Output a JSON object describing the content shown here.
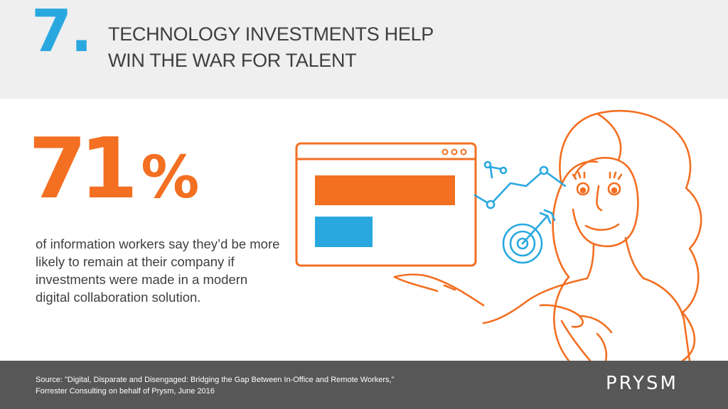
{
  "header": {
    "number": "7.",
    "title_line1": "TECHNOLOGY INVESTMENTS HELP",
    "title_line2": "WIN THE WAR FOR TALENT"
  },
  "stat": {
    "value": "71",
    "symbol": "%",
    "description": "of information workers say they’d be more likely to remain at their company if investments were made in a modern digital collaboration solution."
  },
  "footer": {
    "source_line1": "Source: \"Digital, Disparate and Disengaged: Bridging the Gap Between In-Office and Remote Workers,”",
    "source_line2": "Forrester Consulting on behalf of Prysm, June 2016",
    "logo": "PRYSM"
  },
  "colors": {
    "accent_blue": "#29a8e0",
    "accent_orange": "#f36f21",
    "header_bg": "#efefef",
    "footer_bg": "#575757"
  },
  "illustration": {
    "icons": [
      "browser-window-icon",
      "line-chart-icon",
      "target-icon",
      "woman-illustration"
    ]
  }
}
